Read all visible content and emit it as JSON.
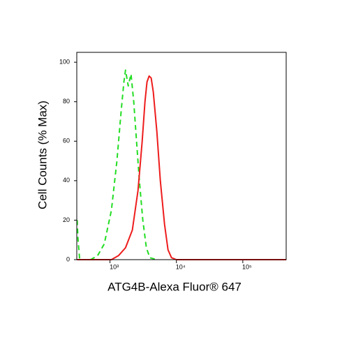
{
  "chart_data": {
    "type": "line",
    "xlabel": "ATG4B-Alexa Fluor® 647",
    "ylabel": "Cell Counts (% Max)",
    "xscale": "log",
    "xlim": [
      316,
      450000
    ],
    "xticks": [
      {
        "value": 1000,
        "label": "10³"
      },
      {
        "value": 10000,
        "label": "10⁴"
      },
      {
        "value": 100000,
        "label": "10⁵"
      }
    ],
    "ylim": [
      0,
      105
    ],
    "yticks": [
      0,
      20,
      40,
      60,
      80,
      100
    ],
    "series": [
      {
        "color": "#22dd22",
        "dash": true,
        "x": [
          320,
          330,
          350,
          510,
          650,
          820,
          1050,
          1270,
          1470,
          1620,
          1710,
          1880,
          2070,
          2280,
          2510,
          2770,
          3120,
          3530,
          3980,
          5070
        ],
        "values": [
          20,
          10,
          0,
          0,
          2,
          8,
          25,
          50,
          75,
          90,
          96,
          88,
          94,
          80,
          60,
          40,
          20,
          6,
          1,
          0
        ]
      },
      {
        "color": "#ee1c1c",
        "dash": false,
        "x": [
          320,
          1050,
          1340,
          1710,
          2170,
          2640,
          3050,
          3360,
          3610,
          3890,
          4170,
          4490,
          5070,
          5730,
          6620,
          7470,
          8440,
          10000,
          450000
        ],
        "values": [
          0,
          0,
          2,
          6,
          15,
          35,
          60,
          80,
          90,
          93,
          92,
          85,
          65,
          40,
          18,
          5,
          1,
          0,
          0
        ]
      }
    ]
  }
}
